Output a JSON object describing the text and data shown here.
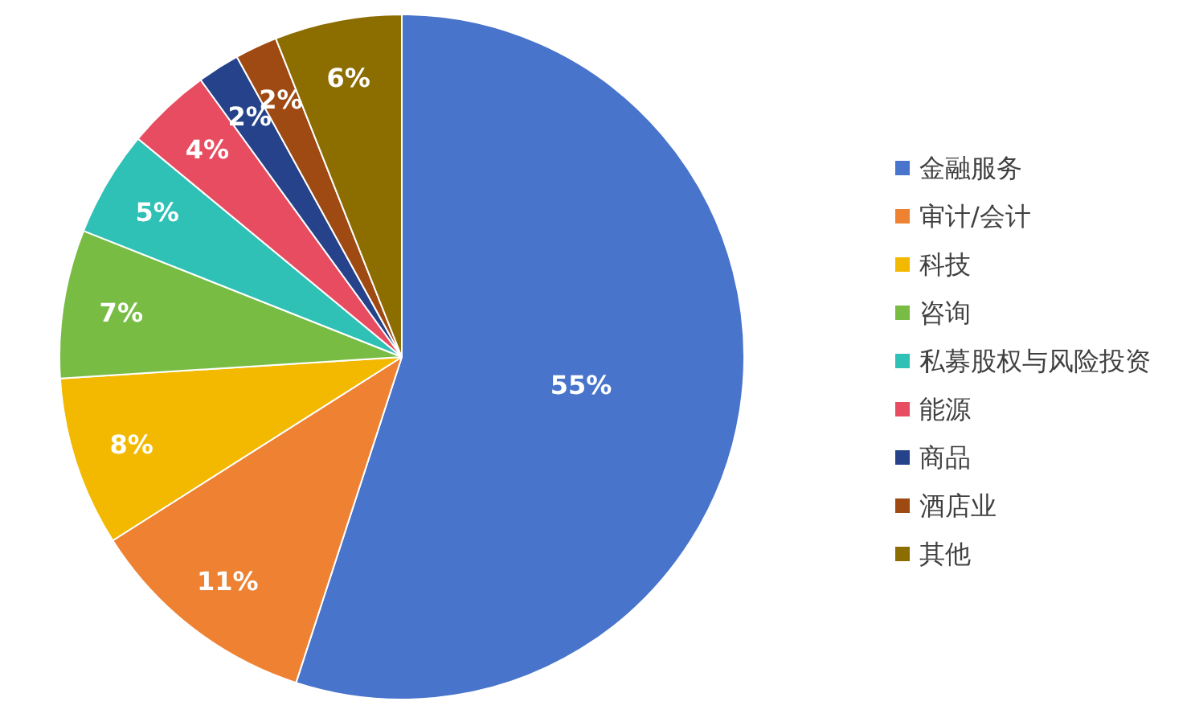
{
  "chart_data": {
    "type": "pie",
    "categories": [
      "金融服务",
      "审计/会计",
      "科技",
      "咨询",
      "私募股权与风险投资",
      "能源",
      "商品",
      "酒店业",
      "其他"
    ],
    "values": [
      55,
      11,
      8,
      7,
      5,
      4,
      2,
      2,
      6
    ],
    "colors": [
      "#4874cb",
      "#ee8132",
      "#f2b900",
      "#78bc43",
      "#2fc1b5",
      "#e84c60",
      "#25428a",
      "#9e4a12",
      "#8c6d00"
    ],
    "value_labels": [
      "55%",
      "11%",
      "8%",
      "7%",
      "5%",
      "4%",
      "2%",
      "2%",
      "6%"
    ],
    "legend": "right"
  }
}
